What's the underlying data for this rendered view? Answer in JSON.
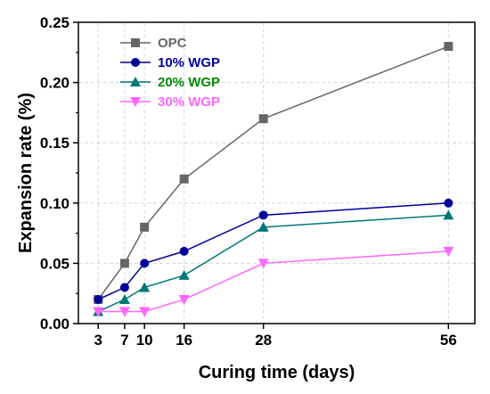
{
  "chart_data": {
    "type": "line",
    "title": "",
    "xlabel": "Curing time (days)",
    "ylabel": "Expansion rate (%)",
    "x": [
      3,
      7,
      10,
      16,
      28,
      56
    ],
    "xticks": [
      "3",
      "7",
      "10",
      "16",
      "28",
      "56"
    ],
    "xlim": [
      0,
      60
    ],
    "ylim": [
      0,
      0.25
    ],
    "yticks": [
      "0.00",
      "0.05",
      "0.10",
      "0.15",
      "0.20",
      "0.25"
    ],
    "ytick_values": [
      0,
      0.05,
      0.1,
      0.15,
      0.2,
      0.25
    ],
    "grid": true,
    "legend_position": "top-left",
    "series": [
      {
        "name": "OPC",
        "color": "#666666",
        "marker": "square",
        "values": [
          0.02,
          0.05,
          0.08,
          0.12,
          0.17,
          0.23
        ]
      },
      {
        "name": "10% WGP",
        "color": "#000099",
        "marker": "circle",
        "values": [
          0.02,
          0.03,
          0.05,
          0.06,
          0.09,
          0.1
        ]
      },
      {
        "name": "20% WGP",
        "color": "#007777",
        "marker": "triangle-up",
        "values": [
          0.01,
          0.02,
          0.03,
          0.04,
          0.08,
          0.09
        ]
      },
      {
        "name": "30% WGP",
        "color": "#ff66ff",
        "marker": "triangle-down",
        "values": [
          0.01,
          0.01,
          0.01,
          0.02,
          0.05,
          0.06
        ]
      }
    ]
  },
  "legend_text_colors": [
    "#666666",
    "#000099",
    "#008800",
    "#ff66ff"
  ]
}
